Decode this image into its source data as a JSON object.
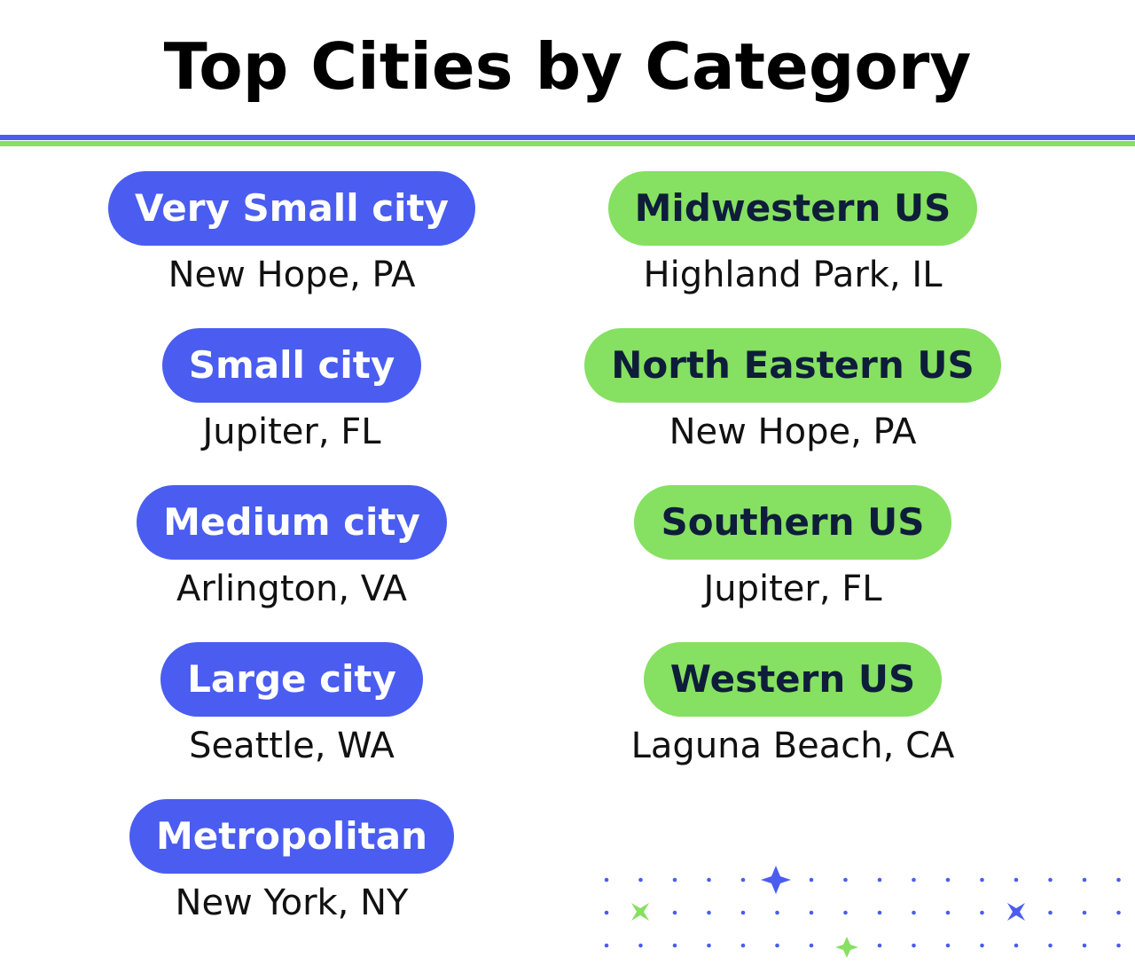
{
  "title": "Top Cities by Category",
  "size_categories": [
    {
      "label": "Very Small city",
      "city": "New Hope, PA"
    },
    {
      "label": "Small city",
      "city": "Jupiter, FL"
    },
    {
      "label": "Medium city",
      "city": "Arlington, VA"
    },
    {
      "label": "Large city",
      "city": "Seattle, WA"
    },
    {
      "label": "Metropolitan",
      "city": "New York, NY"
    }
  ],
  "region_categories": [
    {
      "label": "Midwestern US",
      "city": "Highland Park, IL"
    },
    {
      "label": "North Eastern US",
      "city": "New Hope, PA"
    },
    {
      "label": "Southern US",
      "city": "Jupiter, FL"
    },
    {
      "label": "Western US",
      "city": "Laguna Beach, CA"
    }
  ]
}
